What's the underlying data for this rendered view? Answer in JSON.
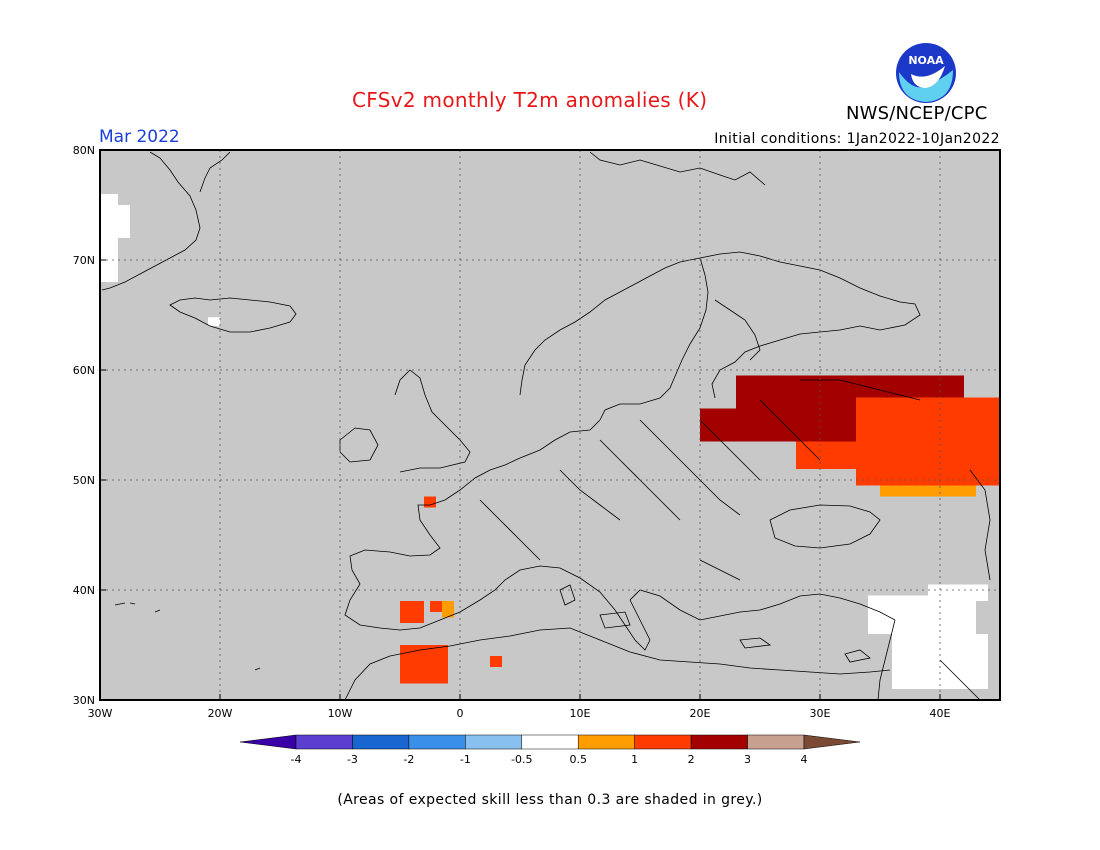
{
  "title": "CFSv2 monthly T2m anomalies (K)",
  "month": "Mar 2022",
  "initial_conditions": "Initial conditions: 1Jan2022-10Jan2022",
  "organization": "NWS/NCEP/CPC",
  "logo_text": "NOAA",
  "footnote": "(Areas of expected skill less than 0.3 are shaded in grey.)",
  "colors": {
    "grey_low_skill": "#c8c8c8",
    "near_zero": "#ffffff",
    "bin_0_5_1": "#ff9d00",
    "bin_1_2": "#ff3b00",
    "bin_2_3": "#a30000",
    "bin_3_4": "#c8a090",
    "bin_gt4": "#7b4a35",
    "bin_lt_neg4": "#3a00a8",
    "bin_neg4_neg3": "#5a3fd0",
    "bin_neg3_neg2": "#1a66d0",
    "bin_neg2_neg1": "#3a90e8",
    "bin_neg1_neg05": "#88c0f0"
  },
  "map": {
    "lon_range": [
      -30,
      45
    ],
    "lat_range": [
      30,
      80
    ],
    "lon_ticks": [
      "30W",
      "20W",
      "10W",
      "0",
      "10E",
      "20E",
      "30E",
      "40E"
    ],
    "lat_ticks": [
      "80N",
      "70N",
      "60N",
      "50N",
      "40N",
      "30N"
    ],
    "grid": "dotted",
    "anomaly_regions": [
      {
        "category": "bin_2_3",
        "lon": [
          23,
          42
        ],
        "lat": [
          55.5,
          59.5
        ]
      },
      {
        "category": "bin_2_3",
        "lon": [
          20,
          33
        ],
        "lat": [
          53.5,
          56.5
        ]
      },
      {
        "category": "bin_1_2",
        "lon": [
          33,
          45
        ],
        "lat": [
          49.5,
          57.5
        ]
      },
      {
        "category": "bin_1_2",
        "lon": [
          28,
          35
        ],
        "lat": [
          51,
          53.5
        ]
      },
      {
        "category": "bin_0_5_1",
        "lon": [
          35,
          43
        ],
        "lat": [
          48.5,
          49.5
        ]
      },
      {
        "category": "bin_1_2",
        "lon": [
          -5,
          -1
        ],
        "lat": [
          31.5,
          35
        ]
      },
      {
        "category": "bin_1_2",
        "lon": [
          -5,
          -3
        ],
        "lat": [
          37,
          39
        ]
      },
      {
        "category": "bin_1_2",
        "lon": [
          -2.5,
          -1.5
        ],
        "lat": [
          38,
          39
        ]
      },
      {
        "category": "bin_0_5_1",
        "lon": [
          -1.5,
          -0.5
        ],
        "lat": [
          37.5,
          39
        ]
      },
      {
        "category": "bin_1_2",
        "lon": [
          2.5,
          3.5
        ],
        "lat": [
          33,
          34
        ]
      },
      {
        "category": "bin_1_2",
        "lon": [
          -3,
          -2
        ],
        "lat": [
          47.5,
          48.5
        ]
      },
      {
        "category": "near_zero",
        "lon": [
          -30,
          -28.5
        ],
        "lat": [
          68,
          76
        ]
      },
      {
        "category": "near_zero",
        "lon": [
          -28.5,
          -27.5
        ],
        "lat": [
          72,
          75
        ]
      },
      {
        "category": "near_zero",
        "lon": [
          -21,
          -20
        ],
        "lat": [
          64,
          64.8
        ]
      },
      {
        "category": "near_zero",
        "lon": [
          34,
          43
        ],
        "lat": [
          36,
          39.5
        ]
      },
      {
        "category": "near_zero",
        "lon": [
          36,
          44
        ],
        "lat": [
          31,
          36
        ]
      },
      {
        "category": "near_zero",
        "lon": [
          39,
          44
        ],
        "lat": [
          39,
          40.5
        ]
      }
    ]
  },
  "colorbar": {
    "labels": [
      "-4",
      "-3",
      "-2",
      "-1",
      "-0.5",
      "0.5",
      "1",
      "2",
      "3",
      "4"
    ],
    "bins": [
      "bin_lt_neg4",
      "bin_neg4_neg3",
      "bin_neg3_neg2",
      "bin_neg2_neg1",
      "bin_neg1_neg05",
      "near_zero",
      "bin_0_5_1",
      "bin_1_2",
      "bin_2_3",
      "bin_3_4",
      "bin_gt4"
    ]
  }
}
